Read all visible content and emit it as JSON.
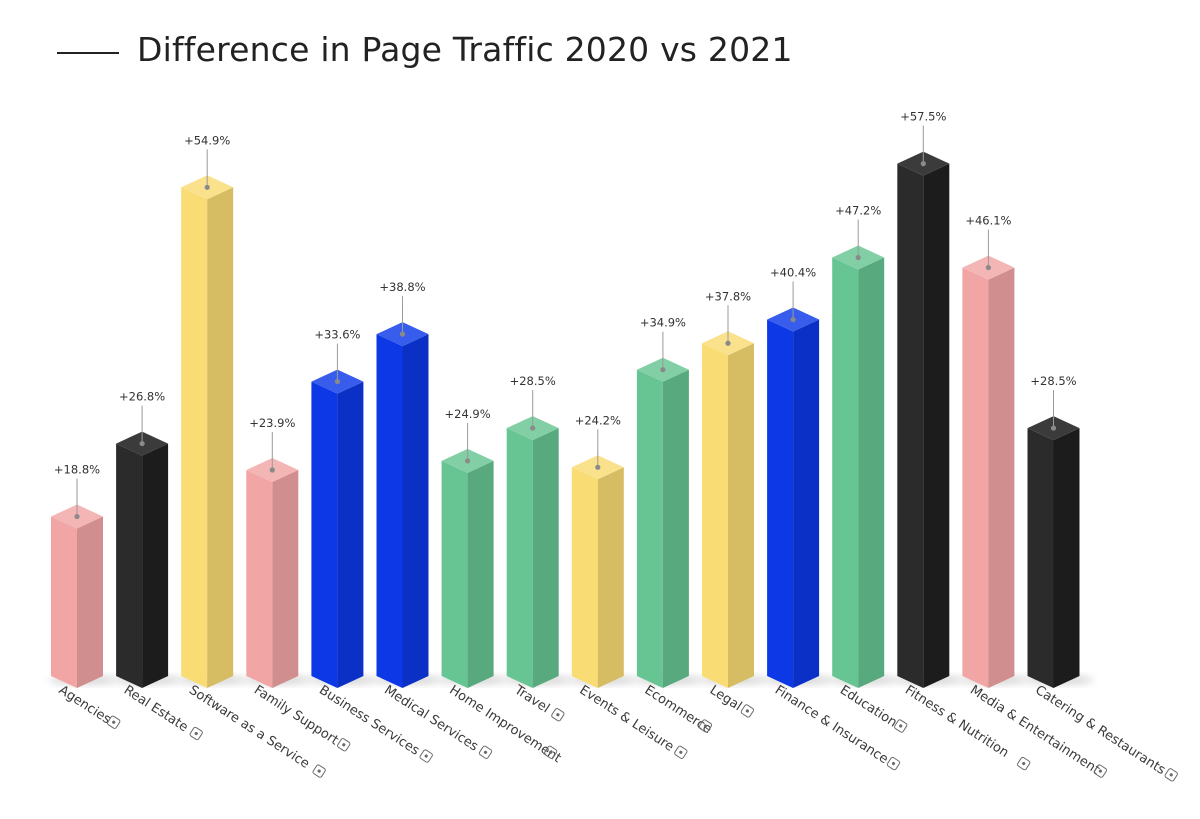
{
  "title": "Difference in Page Traffic 2020 vs 2021",
  "colors": {
    "pink": "#f2a5a5",
    "black": "#2b2b2b",
    "yellow": "#f9dc74",
    "blue": "#0c38e6",
    "green": "#66c593"
  },
  "chart_data": {
    "type": "bar",
    "title": "Difference in Page Traffic 2020 vs 2021",
    "xlabel": "",
    "ylabel": "",
    "ylim": [
      0,
      60
    ],
    "unit": "%",
    "categories": [
      "Agencies",
      "Real Estate",
      "Software as a Service",
      "Family Support",
      "Business Services",
      "Medical Services",
      "Home Improvement",
      "Travel",
      "Events & Leisure",
      "Ecommerce",
      "Legal",
      "Finance & Insurance",
      "Education",
      "Fitness & Nutrition",
      "Media & Entertainment",
      "Catering & Restaurants"
    ],
    "values": [
      18.8,
      26.8,
      54.9,
      23.9,
      33.6,
      38.8,
      24.9,
      28.5,
      24.2,
      34.9,
      37.8,
      40.4,
      47.2,
      57.5,
      46.1,
      28.5
    ],
    "labels": [
      "+18.8%",
      "+26.8%",
      "+54.9%",
      "+23.9%",
      "+33.6%",
      "+38.8%",
      "+24.9%",
      "+28.5%",
      "+24.2%",
      "+34.9%",
      "+37.8%",
      "+40.4%",
      "+47.2%",
      "+57.5%",
      "+46.1%",
      "+28.5%"
    ],
    "bar_colors": [
      "pink",
      "black",
      "yellow",
      "pink",
      "blue",
      "blue",
      "green",
      "green",
      "yellow",
      "green",
      "yellow",
      "blue",
      "green",
      "black",
      "pink",
      "black"
    ],
    "icons": [
      "handshake-icon",
      "house-icon",
      "gear-icon",
      "family-icon",
      "briefcase-icon",
      "stethoscope-icon",
      "toolbox-icon",
      "airplane-icon",
      "calendar-icon",
      "cart-icon",
      "gavel-icon",
      "dollar-icon",
      "book-icon",
      "dumbbell-icon",
      "play-icon",
      "chef-icon"
    ],
    "grid": false,
    "legend": "none"
  }
}
